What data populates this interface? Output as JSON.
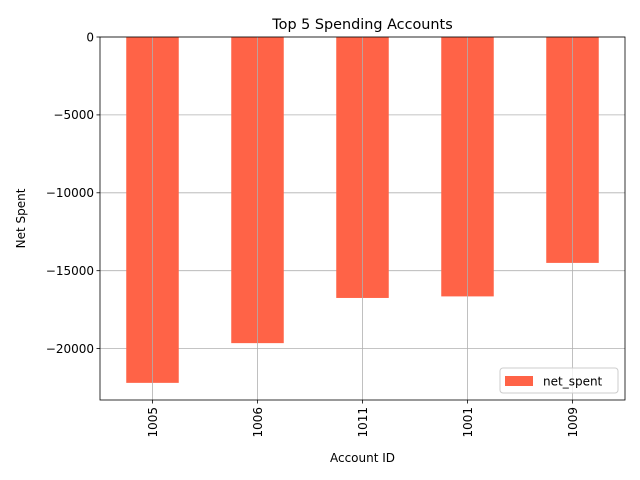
{
  "chart_data": {
    "type": "bar",
    "title": "Top 5 Spending Accounts",
    "xlabel": "Account ID",
    "ylabel": "Net Spent",
    "categories": [
      "1005",
      "1006",
      "1011",
      "1001",
      "1009"
    ],
    "series": [
      {
        "name": "net_spent",
        "values": [
          -22200,
          -19650,
          -16750,
          -16650,
          -14500
        ],
        "color": "#ff6347"
      }
    ],
    "ylim": [
      -23300,
      0
    ],
    "yticks": [
      0,
      -5000,
      -10000,
      -15000,
      -20000
    ],
    "ytick_labels": [
      "0",
      "−5000",
      "−10000",
      "−15000",
      "−20000"
    ],
    "grid": true,
    "legend_position": "lower-right"
  }
}
